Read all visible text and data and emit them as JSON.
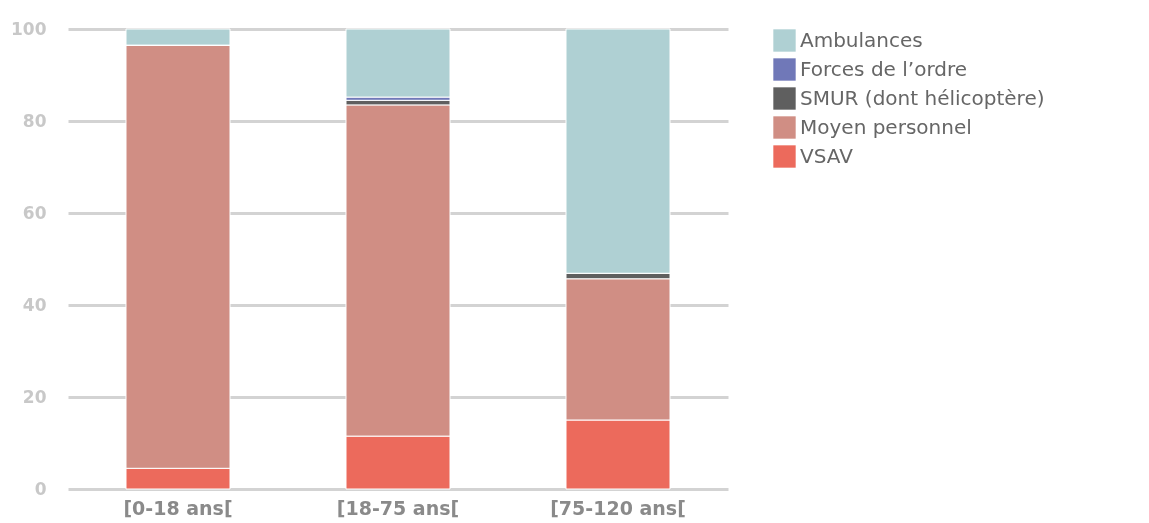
{
  "chart_data": {
    "type": "bar",
    "stacked": true,
    "categories": [
      "[0-18 ans[",
      "[18-75 ans[",
      "[75-120 ans["
    ],
    "series": [
      {
        "name": "VSAV",
        "color": "#ec6a5c",
        "values": [
          4.5,
          11.5,
          15
        ]
      },
      {
        "name": "Moyen personnel",
        "color": "#d08e84",
        "values": [
          92,
          72,
          30.7
        ]
      },
      {
        "name": "SMUR (dont hélicoptère)",
        "color": "#5f5f5f",
        "values": [
          0,
          1,
          1.2
        ]
      },
      {
        "name": "Forces de l’ordre",
        "color": "#7078b8",
        "values": [
          0,
          0.7,
          0
        ]
      },
      {
        "name": "Ambulances",
        "color": "#afd0d3",
        "values": [
          3.5,
          14.8,
          53.1
        ]
      }
    ],
    "ylim": [
      0,
      100
    ],
    "yticks": [
      0,
      20,
      40,
      60,
      80,
      100
    ],
    "grid": "y",
    "legend": "right"
  }
}
